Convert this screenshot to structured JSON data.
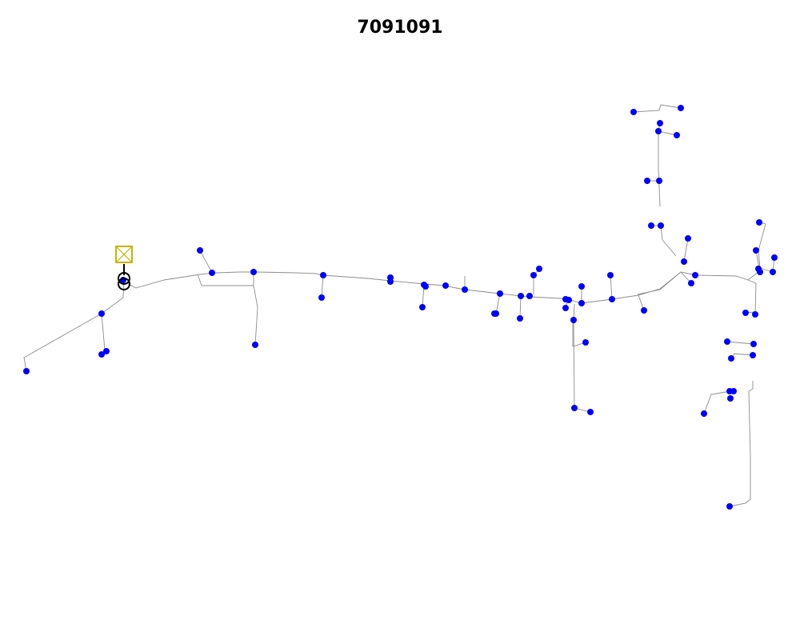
{
  "title": "7091091",
  "colors": {
    "background": "#ffffff",
    "line": "#8c8c8c",
    "node": "#0000ff",
    "source_box": "#c8b400",
    "transformer": "#000000"
  },
  "icons": {
    "source": "source-substation-icon",
    "transformer": "transformer-icon"
  }
}
